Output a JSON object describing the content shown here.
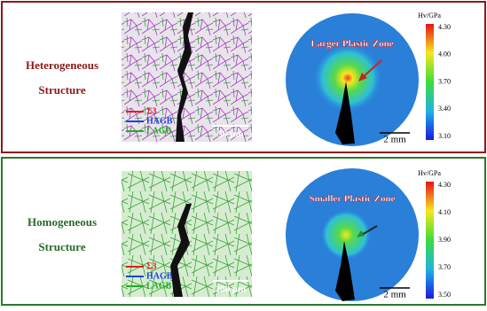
{
  "panels": [
    {
      "label": [
        "Heterogeneous",
        "Structure"
      ],
      "legend": [
        "Σ3",
        "HAGB",
        "LAGB"
      ],
      "micro_scale": "50 μm",
      "zone": "Larger Plastic Zone",
      "map_scale": "2 mm",
      "colorbar_title": "Hv/GPa",
      "colorbar_ticks": [
        "4.30",
        "4.00",
        "3.70",
        "3.40",
        "3.10"
      ]
    },
    {
      "label": [
        "Homogeneous",
        "Structure"
      ],
      "legend": [
        "Σ3",
        "HAGB",
        "LAGB"
      ],
      "micro_scale": "200 μm",
      "zone": "Smaller Plastic Zone",
      "map_scale": "2 mm",
      "colorbar_title": "Hv/GPa",
      "colorbar_ticks": [
        "4.30",
        "4.10",
        "3.90",
        "3.70",
        "3.50"
      ]
    }
  ]
}
